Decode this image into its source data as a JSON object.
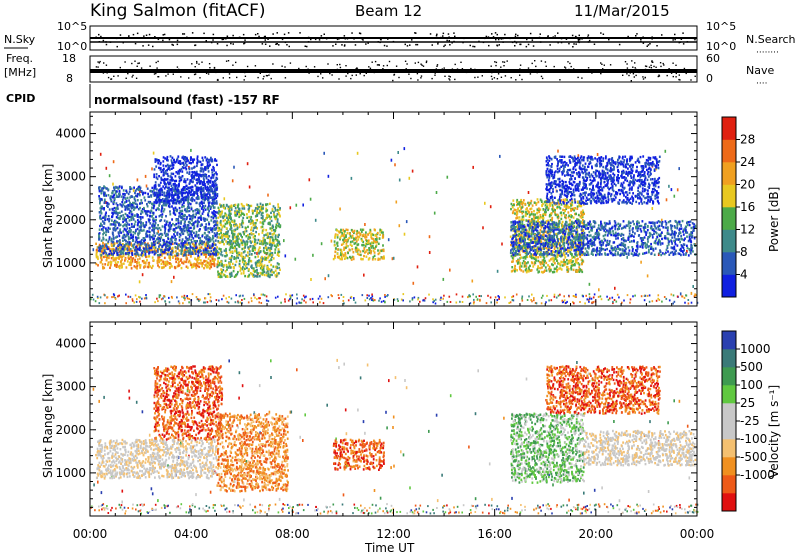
{
  "header": {
    "station": "King Salmon (fitACF)",
    "beam": "Beam 12",
    "date": "11/Mar/2015"
  },
  "strips": {
    "nsky_label": "N.Sky",
    "nsearch_label": "N.Search",
    "nsearch_dots": "········",
    "nsky_ticks": [
      "10^5",
      "10^0"
    ],
    "nsearch_ticks": [
      "10^5",
      "10^0"
    ],
    "freq_label": "Freq.",
    "freq_unit": "[MHz]",
    "freq_ticks": [
      "18",
      "8"
    ],
    "nave_label": "Nave",
    "nave_dots": "····",
    "nave_ticks": [
      "60",
      "0"
    ],
    "cpid_label": "CPID",
    "cpid_text": "normalsound (fast) -157 RF"
  },
  "colors": {
    "power_scale": [
      "#1020e0",
      "#2a58b8",
      "#3e8a8a",
      "#4caa48",
      "#e8c820",
      "#f0a020",
      "#ee6a18",
      "#e02010"
    ],
    "velocity_scale": [
      "#e01010",
      "#ee5a18",
      "#f09020",
      "#f4c070",
      "#c8c8c8",
      "#c8c8c8",
      "#60c840",
      "#3e9a50",
      "#3a7a78",
      "#2a40b0"
    ]
  },
  "chart_data": [
    {
      "type": "heatmap",
      "panel": "power",
      "xlabel": "",
      "ylabel": "Slant Range [km]",
      "xlim": [
        0,
        24
      ],
      "ylim": [
        0,
        4500
      ],
      "yticks": [
        "1000",
        "2000",
        "3000",
        "4000"
      ],
      "colorbar": {
        "label": "Power [dB]",
        "ticks": [
          "4",
          "8",
          "12",
          "16",
          "20",
          "24",
          "28"
        ]
      },
      "regions": [
        {
          "t0": 0.2,
          "t1": 5.0,
          "r0": 900,
          "r1": 1500,
          "level": 5
        },
        {
          "t0": 0.3,
          "t1": 5.0,
          "r0": 1200,
          "r1": 2800,
          "level": 1
        },
        {
          "t0": 2.5,
          "t1": 5.0,
          "r0": 2400,
          "r1": 3500,
          "level": 0
        },
        {
          "t0": 5.0,
          "t1": 7.5,
          "r0": 700,
          "r1": 2400,
          "level": 3
        },
        {
          "t0": 9.6,
          "t1": 11.6,
          "r0": 1100,
          "r1": 1800,
          "level": 4
        },
        {
          "t0": 16.6,
          "t1": 19.5,
          "r0": 800,
          "r1": 2500,
          "level": 4
        },
        {
          "t0": 16.6,
          "t1": 23.9,
          "r0": 1200,
          "r1": 2000,
          "level": 1
        },
        {
          "t0": 18.0,
          "t1": 22.5,
          "r0": 2400,
          "r1": 3500,
          "level": 0
        }
      ]
    },
    {
      "type": "heatmap",
      "panel": "velocity",
      "xlabel": "Time UT",
      "ylabel": "Slant Range [km]",
      "xlim": [
        0,
        24
      ],
      "ylim": [
        0,
        4500
      ],
      "xticks": [
        "00:00",
        "04:00",
        "08:00",
        "12:00",
        "16:00",
        "20:00",
        "00:00"
      ],
      "yticks": [
        "1000",
        "2000",
        "3000",
        "4000"
      ],
      "colorbar": {
        "label": "Velocity [m s⁻¹]",
        "ticks": [
          "1000",
          "500",
          "100",
          "25",
          "-25",
          "-100",
          "-500",
          "-1000"
        ]
      },
      "regions": [
        {
          "t0": 0.2,
          "t1": 5.0,
          "r0": 900,
          "r1": 1800,
          "level": 4
        },
        {
          "t0": 2.5,
          "t1": 5.2,
          "r0": 1800,
          "r1": 3500,
          "level": 1
        },
        {
          "t0": 5.0,
          "t1": 7.8,
          "r0": 600,
          "r1": 2400,
          "level": 2
        },
        {
          "t0": 9.6,
          "t1": 11.6,
          "r0": 1100,
          "r1": 1800,
          "level": 1
        },
        {
          "t0": 16.6,
          "t1": 19.5,
          "r0": 800,
          "r1": 2400,
          "level": 6
        },
        {
          "t0": 18.0,
          "t1": 22.5,
          "r0": 2400,
          "r1": 3500,
          "level": 1
        },
        {
          "t0": 19.5,
          "t1": 23.9,
          "r0": 1200,
          "r1": 2000,
          "level": 4
        }
      ]
    }
  ]
}
